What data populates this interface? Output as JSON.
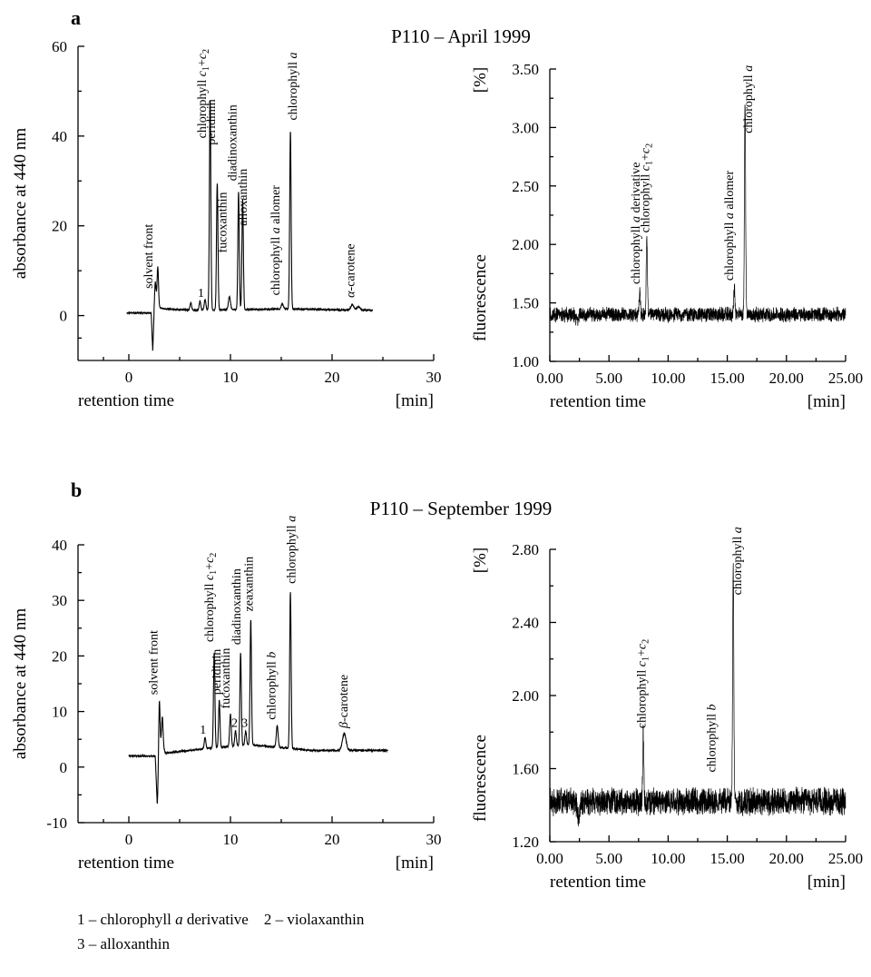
{
  "figure": {
    "panel_a": {
      "letter": "a",
      "title": "P110 – April 1999"
    },
    "panel_b": {
      "letter": "b",
      "title": "P110 – September 1999"
    },
    "legend": {
      "line1": [
        "1 – chlorophyll ",
        "a",
        " derivative    2 – violaxanthin"
      ],
      "line2": "3 – alloxanthin"
    }
  },
  "chart_data": [
    {
      "id": "a-abs",
      "type": "line",
      "ylabel": "absorbance at 440 nm",
      "xlabel": "retention time",
      "xunit": "[min]",
      "xlim": [
        -5,
        30
      ],
      "ylim": [
        -10,
        60
      ],
      "xticks": [
        0,
        10,
        20,
        30
      ],
      "xtick_labels": [
        "0",
        "10",
        "20",
        "30"
      ],
      "yticks": [
        0,
        20,
        40,
        60
      ],
      "ytick_labels": [
        "0",
        "20",
        "40",
        "60"
      ],
      "baseline": [
        [
          -0.2,
          0.6
        ],
        [
          2.2,
          0.6
        ],
        [
          2.35,
          -7.8
        ],
        [
          2.5,
          0.2
        ],
        [
          2.6,
          2.5
        ],
        [
          3.0,
          1.8
        ],
        [
          3.5,
          1.5
        ],
        [
          6.0,
          1.2
        ],
        [
          16.0,
          1.5
        ],
        [
          20.0,
          1.3
        ],
        [
          24.0,
          1.2
        ]
      ],
      "peaks": [
        {
          "x": 2.6,
          "y": 7.5,
          "w": 0.08
        },
        {
          "x": 2.85,
          "y": 10.8,
          "w": 0.07
        },
        {
          "x": 6.1,
          "y": 2.8,
          "w": 0.08
        },
        {
          "x": 7.0,
          "y": 3.2,
          "w": 0.08
        },
        {
          "x": 7.5,
          "y": 3.6,
          "w": 0.08
        },
        {
          "x": 8.0,
          "y": 48.0,
          "w": 0.07
        },
        {
          "x": 8.7,
          "y": 29.5,
          "w": 0.07
        },
        {
          "x": 9.9,
          "y": 4.2,
          "w": 0.1
        },
        {
          "x": 10.8,
          "y": 27.5,
          "w": 0.07
        },
        {
          "x": 11.2,
          "y": 26.0,
          "w": 0.07
        },
        {
          "x": 15.1,
          "y": 2.6,
          "w": 0.1
        },
        {
          "x": 15.9,
          "y": 41.0,
          "w": 0.07
        },
        {
          "x": 22.0,
          "y": 2.4,
          "w": 0.15
        },
        {
          "x": 22.6,
          "y": 2.0,
          "w": 0.15
        }
      ],
      "labels": [
        {
          "x": 2.3,
          "y": 6.0,
          "parts": [
            [
              "solvent front",
              false
            ]
          ]
        },
        {
          "x": 7.1,
          "y": 4.2,
          "parts": [
            [
              "1",
              false
            ]
          ],
          "horizontal": true
        },
        {
          "x": 7.6,
          "y": 39.5,
          "parts": [
            [
              "chlorophyll ",
              false
            ],
            [
              "c",
              true
            ],
            [
              "1",
              "sub"
            ],
            [
              "+",
              false
            ],
            [
              "c",
              true
            ],
            [
              "2",
              "sub"
            ]
          ]
        },
        {
          "x": 8.5,
          "y": 38.0,
          "parts": [
            [
              "peridinin",
              false
            ]
          ]
        },
        {
          "x": 9.6,
          "y": 14.0,
          "parts": [
            [
              "fucoxanthin",
              false
            ]
          ]
        },
        {
          "x": 10.6,
          "y": 30.0,
          "parts": [
            [
              "diadinoxanthin",
              false
            ]
          ]
        },
        {
          "x": 11.6,
          "y": 20.0,
          "parts": [
            [
              "alloxanthin",
              false
            ]
          ]
        },
        {
          "x": 14.8,
          "y": 4.5,
          "parts": [
            [
              "chlorophyll ",
              false
            ],
            [
              "a",
              true
            ],
            [
              " allomer",
              false
            ]
          ]
        },
        {
          "x": 16.5,
          "y": 43.5,
          "parts": [
            [
              "chlorophyll ",
              false
            ],
            [
              "a",
              true
            ]
          ]
        },
        {
          "x": 22.2,
          "y": 4.0,
          "parts": [
            [
              "α",
              true
            ],
            [
              "-carotene",
              false
            ]
          ]
        }
      ]
    },
    {
      "id": "a-fluo",
      "type": "line",
      "ylabel": "fluorescence",
      "yunit": "[%]",
      "xlabel": "retention time",
      "xunit": "[min]",
      "xlim": [
        0,
        25
      ],
      "ylim": [
        1.0,
        3.5
      ],
      "xticks": [
        0,
        5,
        10,
        15,
        20,
        25
      ],
      "xtick_labels": [
        "0.00",
        "5.00",
        "10.00",
        "15.00",
        "20.00",
        "25.00"
      ],
      "yticks": [
        1.0,
        1.5,
        2.0,
        2.5,
        3.0,
        3.5
      ],
      "ytick_labels": [
        "1.00",
        "1.50",
        "2.00",
        "2.50",
        "3.00",
        "3.50"
      ],
      "noise_base": 1.4,
      "noise_amp": 0.055,
      "dip": {
        "x": 2.3,
        "depth": 0.06
      },
      "peaks": [
        {
          "x": 7.6,
          "y": 1.61,
          "w": 0.05
        },
        {
          "x": 8.2,
          "y": 2.05,
          "w": 0.05
        },
        {
          "x": 15.6,
          "y": 1.64,
          "w": 0.05
        },
        {
          "x": 16.5,
          "y": 3.22,
          "w": 0.05
        }
      ],
      "labels": [
        {
          "x": 7.6,
          "y": 1.66,
          "parts": [
            [
              "chlorophyll ",
              false
            ],
            [
              "a",
              true
            ],
            [
              " derivative",
              false
            ]
          ]
        },
        {
          "x": 8.4,
          "y": 2.1,
          "parts": [
            [
              "chlorophyll ",
              false
            ],
            [
              "c",
              true
            ],
            [
              "1",
              "sub"
            ],
            [
              "+",
              false
            ],
            [
              "c",
              true
            ],
            [
              "2",
              "sub"
            ]
          ]
        },
        {
          "x": 15.5,
          "y": 1.69,
          "parts": [
            [
              "chlorophyll ",
              false
            ],
            [
              "a",
              true
            ],
            [
              " allomer",
              false
            ]
          ]
        },
        {
          "x": 17.1,
          "y": 2.95,
          "parts": [
            [
              "chlorophyll ",
              false
            ],
            [
              "a",
              true
            ]
          ]
        }
      ]
    },
    {
      "id": "b-abs",
      "type": "line",
      "ylabel": "absorbance at 440 nm",
      "xlabel": "retention time",
      "xunit": "[min]",
      "xlim": [
        -5,
        30
      ],
      "ylim": [
        -10,
        40
      ],
      "xticks": [
        0,
        10,
        20,
        30
      ],
      "xtick_labels": [
        "0",
        "10",
        "20",
        "30"
      ],
      "yticks": [
        -10,
        0,
        10,
        20,
        30,
        40
      ],
      "ytick_labels": [
        "-10",
        "0",
        "10",
        "20",
        "30",
        "40"
      ],
      "baseline": [
        [
          0,
          2.0
        ],
        [
          2.6,
          2.0
        ],
        [
          2.8,
          -7.0
        ],
        [
          3.0,
          1.5
        ],
        [
          3.2,
          4.5
        ],
        [
          3.6,
          2.5
        ],
        [
          5.0,
          2.8
        ],
        [
          8.0,
          3.4
        ],
        [
          12.0,
          4.0
        ],
        [
          15.0,
          3.5
        ],
        [
          18.0,
          3.0
        ],
        [
          20.0,
          3.0
        ],
        [
          23.0,
          3.0
        ],
        [
          25.5,
          3.0
        ]
      ],
      "peaks": [
        {
          "x": 3.0,
          "y": 11.8,
          "w": 0.07
        },
        {
          "x": 3.3,
          "y": 9.0,
          "w": 0.07
        },
        {
          "x": 7.5,
          "y": 5.3,
          "w": 0.08
        },
        {
          "x": 8.4,
          "y": 20.5,
          "w": 0.07
        },
        {
          "x": 8.9,
          "y": 12.0,
          "w": 0.07
        },
        {
          "x": 10.0,
          "y": 9.5,
          "w": 0.08
        },
        {
          "x": 10.5,
          "y": 6.5,
          "w": 0.08
        },
        {
          "x": 11.0,
          "y": 20.5,
          "w": 0.07
        },
        {
          "x": 11.5,
          "y": 6.5,
          "w": 0.08
        },
        {
          "x": 12.0,
          "y": 26.5,
          "w": 0.07
        },
        {
          "x": 14.6,
          "y": 7.5,
          "w": 0.09
        },
        {
          "x": 15.9,
          "y": 31.5,
          "w": 0.07
        },
        {
          "x": 21.2,
          "y": 6.0,
          "w": 0.18
        }
      ],
      "labels": [
        {
          "x": 2.8,
          "y": 13.0,
          "parts": [
            [
              "solvent front",
              false
            ]
          ]
        },
        {
          "x": 7.3,
          "y": 6.0,
          "parts": [
            [
              "1",
              false
            ]
          ],
          "horizontal": true
        },
        {
          "x": 8.3,
          "y": 22.5,
          "parts": [
            [
              "chlorophyll ",
              false
            ],
            [
              "c",
              true
            ],
            [
              "1",
              "sub"
            ],
            [
              "+",
              false
            ],
            [
              "c",
              true
            ],
            [
              "2",
              "sub"
            ]
          ]
        },
        {
          "x": 9.0,
          "y": 13.0,
          "parts": [
            [
              "peridinin",
              false
            ]
          ]
        },
        {
          "x": 9.9,
          "y": 10.5,
          "parts": [
            [
              "fucoxanthin",
              false
            ]
          ]
        },
        {
          "x": 10.4,
          "y": 7.2,
          "parts": [
            [
              "2",
              false
            ]
          ],
          "horizontal": true
        },
        {
          "x": 11.0,
          "y": 22.0,
          "parts": [
            [
              "diadinoxanthin",
              false
            ]
          ]
        },
        {
          "x": 11.4,
          "y": 7.2,
          "parts": [
            [
              "3",
              false
            ]
          ],
          "horizontal": true
        },
        {
          "x": 12.2,
          "y": 28.0,
          "parts": [
            [
              "zeaxanthin",
              false
            ]
          ]
        },
        {
          "x": 14.4,
          "y": 8.5,
          "parts": [
            [
              "chlorophyll ",
              false
            ],
            [
              "b",
              true
            ]
          ]
        },
        {
          "x": 16.4,
          "y": 33.0,
          "parts": [
            [
              "chlorophyll ",
              false
            ],
            [
              "a",
              true
            ]
          ]
        },
        {
          "x": 21.5,
          "y": 7.0,
          "parts": [
            [
              "β",
              true
            ],
            [
              "-carotene",
              false
            ]
          ]
        }
      ]
    },
    {
      "id": "b-fluo",
      "type": "line",
      "ylabel": "fluorescence",
      "yunit": "[%]",
      "xlabel": "retention time",
      "xunit": "[min]",
      "xlim": [
        0,
        25
      ],
      "ylim": [
        1.2,
        2.8
      ],
      "xticks": [
        0,
        5,
        10,
        15,
        20,
        25
      ],
      "xtick_labels": [
        "0.00",
        "5.00",
        "10.00",
        "15.00",
        "20.00",
        "25.00"
      ],
      "yticks": [
        1.2,
        1.6,
        2.0,
        2.4,
        2.8
      ],
      "ytick_labels": [
        "1.20",
        "1.60",
        "2.00",
        "2.40",
        "2.80"
      ],
      "noise_base": 1.42,
      "noise_amp": 0.065,
      "dip": {
        "x": 2.4,
        "depth": 0.09
      },
      "peaks": [
        {
          "x": 7.9,
          "y": 1.78,
          "w": 0.05
        },
        {
          "x": 15.5,
          "y": 2.75,
          "w": 0.05
        }
      ],
      "labels": [
        {
          "x": 8.1,
          "y": 1.82,
          "parts": [
            [
              "chlorophyll ",
              false
            ],
            [
              "c",
              true
            ],
            [
              "1",
              "sub"
            ],
            [
              "+",
              false
            ],
            [
              "c",
              true
            ],
            [
              "2",
              "sub"
            ]
          ]
        },
        {
          "x": 14.0,
          "y": 1.58,
          "parts": [
            [
              "chlorophyll ",
              false
            ],
            [
              "b",
              true
            ]
          ]
        },
        {
          "x": 16.2,
          "y": 2.55,
          "parts": [
            [
              "chlorophyll ",
              false
            ],
            [
              "a",
              true
            ]
          ]
        }
      ]
    }
  ]
}
